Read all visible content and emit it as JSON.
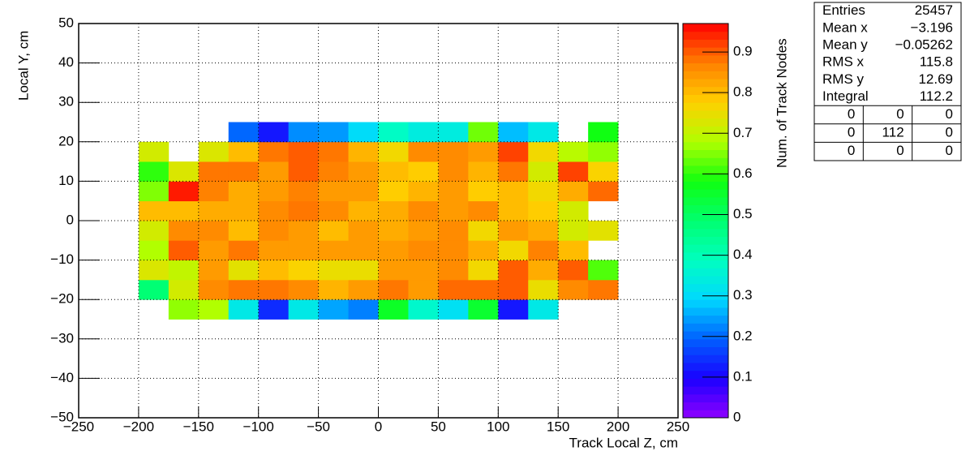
{
  "chart_data": {
    "type": "heatmap",
    "x_label": "Track Local Z, cm",
    "y_label": "Local Y, cm",
    "z_label": "Num. of Track Nodes",
    "x_bins": [
      -200,
      -175,
      -150,
      -125,
      -100,
      -75,
      -50,
      -25,
      0,
      25,
      50,
      75,
      100,
      125,
      150,
      175,
      200
    ],
    "y_bins": [
      -25,
      -20,
      -15,
      -10,
      -5,
      0,
      5,
      10,
      15,
      20,
      25
    ],
    "values": [
      [
        null,
        0.66,
        0.68,
        0.33,
        0.14,
        0.33,
        0.25,
        0.22,
        0.56,
        0.37,
        0.31,
        0.55,
        0.12,
        0.33,
        null,
        null
      ],
      [
        0.48,
        0.72,
        0.86,
        0.88,
        0.88,
        0.86,
        0.81,
        0.84,
        0.88,
        0.84,
        0.89,
        0.89,
        0.9,
        0.75,
        0.86,
        0.88
      ],
      [
        0.73,
        0.7,
        0.84,
        0.74,
        0.8,
        0.77,
        0.75,
        0.75,
        0.84,
        0.84,
        0.86,
        0.76,
        0.9,
        0.82,
        0.9,
        0.62
      ],
      [
        0.68,
        0.9,
        0.84,
        0.88,
        0.84,
        0.84,
        0.84,
        0.84,
        0.84,
        0.86,
        0.86,
        0.82,
        0.76,
        0.87,
        0.8,
        null
      ],
      [
        0.72,
        0.86,
        0.86,
        0.8,
        0.86,
        0.84,
        0.8,
        0.84,
        0.82,
        0.84,
        0.86,
        0.76,
        0.84,
        0.82,
        0.72,
        0.74
      ],
      [
        0.8,
        0.8,
        0.82,
        0.82,
        0.86,
        0.88,
        0.86,
        0.81,
        0.82,
        0.86,
        0.84,
        0.86,
        0.8,
        0.78,
        0.72,
        null
      ],
      [
        0.65,
        0.95,
        0.87,
        0.82,
        0.84,
        0.87,
        0.84,
        0.84,
        0.78,
        0.81,
        0.84,
        0.78,
        0.8,
        0.76,
        0.82,
        0.89
      ],
      [
        0.6,
        0.73,
        0.88,
        0.88,
        0.84,
        0.9,
        0.87,
        0.84,
        0.8,
        0.78,
        0.86,
        0.81,
        0.88,
        0.72,
        0.92,
        0.77
      ],
      [
        0.72,
        null,
        0.73,
        0.8,
        0.88,
        0.9,
        0.88,
        0.81,
        0.76,
        0.86,
        0.86,
        0.84,
        0.92,
        0.76,
        0.69,
        0.66
      ],
      [
        null,
        null,
        null,
        0.2,
        0.12,
        0.23,
        0.24,
        0.3,
        0.38,
        0.34,
        0.34,
        0.64,
        0.27,
        0.33,
        null,
        0.58
      ]
    ],
    "xlim": [
      -250,
      250
    ],
    "xticks": [
      {
        "value": -250,
        "label": "−250"
      },
      {
        "value": -200,
        "label": "−200"
      },
      {
        "value": -150,
        "label": "−150"
      },
      {
        "value": -100,
        "label": "−100"
      },
      {
        "value": -50,
        "label": "−50"
      },
      0,
      50,
      100,
      150,
      200,
      250
    ],
    "ylim": [
      -50,
      50
    ],
    "yticks": [
      {
        "value": -50,
        "label": "−50"
      },
      {
        "value": -40,
        "label": "−40"
      },
      {
        "value": -30,
        "label": "−30"
      },
      {
        "value": -20,
        "label": "−20"
      },
      {
        "value": -10,
        "label": "−10"
      },
      0,
      10,
      20,
      30,
      40,
      50
    ],
    "zlim": [
      0,
      0.97
    ],
    "zticks": [
      0,
      0.1,
      0.2,
      0.3,
      0.4,
      0.5,
      0.6,
      0.7,
      0.8,
      0.9
    ],
    "palette": [
      "#9000ff",
      "#1a00ff",
      "#0060ff",
      "#00d8ff",
      "#00ffc0",
      "#00ff70",
      "#10ff10",
      "#b0ff00",
      "#ffd000",
      "#ff8000",
      "#ff0000"
    ],
    "grid": true,
    "stats": {
      "rows": [
        [
          "Entries",
          "25457"
        ],
        [
          "Mean x",
          "−3.196"
        ],
        [
          "Mean y",
          "−0.05262"
        ],
        [
          "RMS x",
          "115.8"
        ],
        [
          "RMS y",
          "12.69"
        ],
        [
          "Integral",
          "112.2"
        ]
      ],
      "overflow": [
        [
          0,
          0,
          0
        ],
        [
          0,
          112,
          0
        ],
        [
          0,
          0,
          0
        ]
      ]
    }
  }
}
